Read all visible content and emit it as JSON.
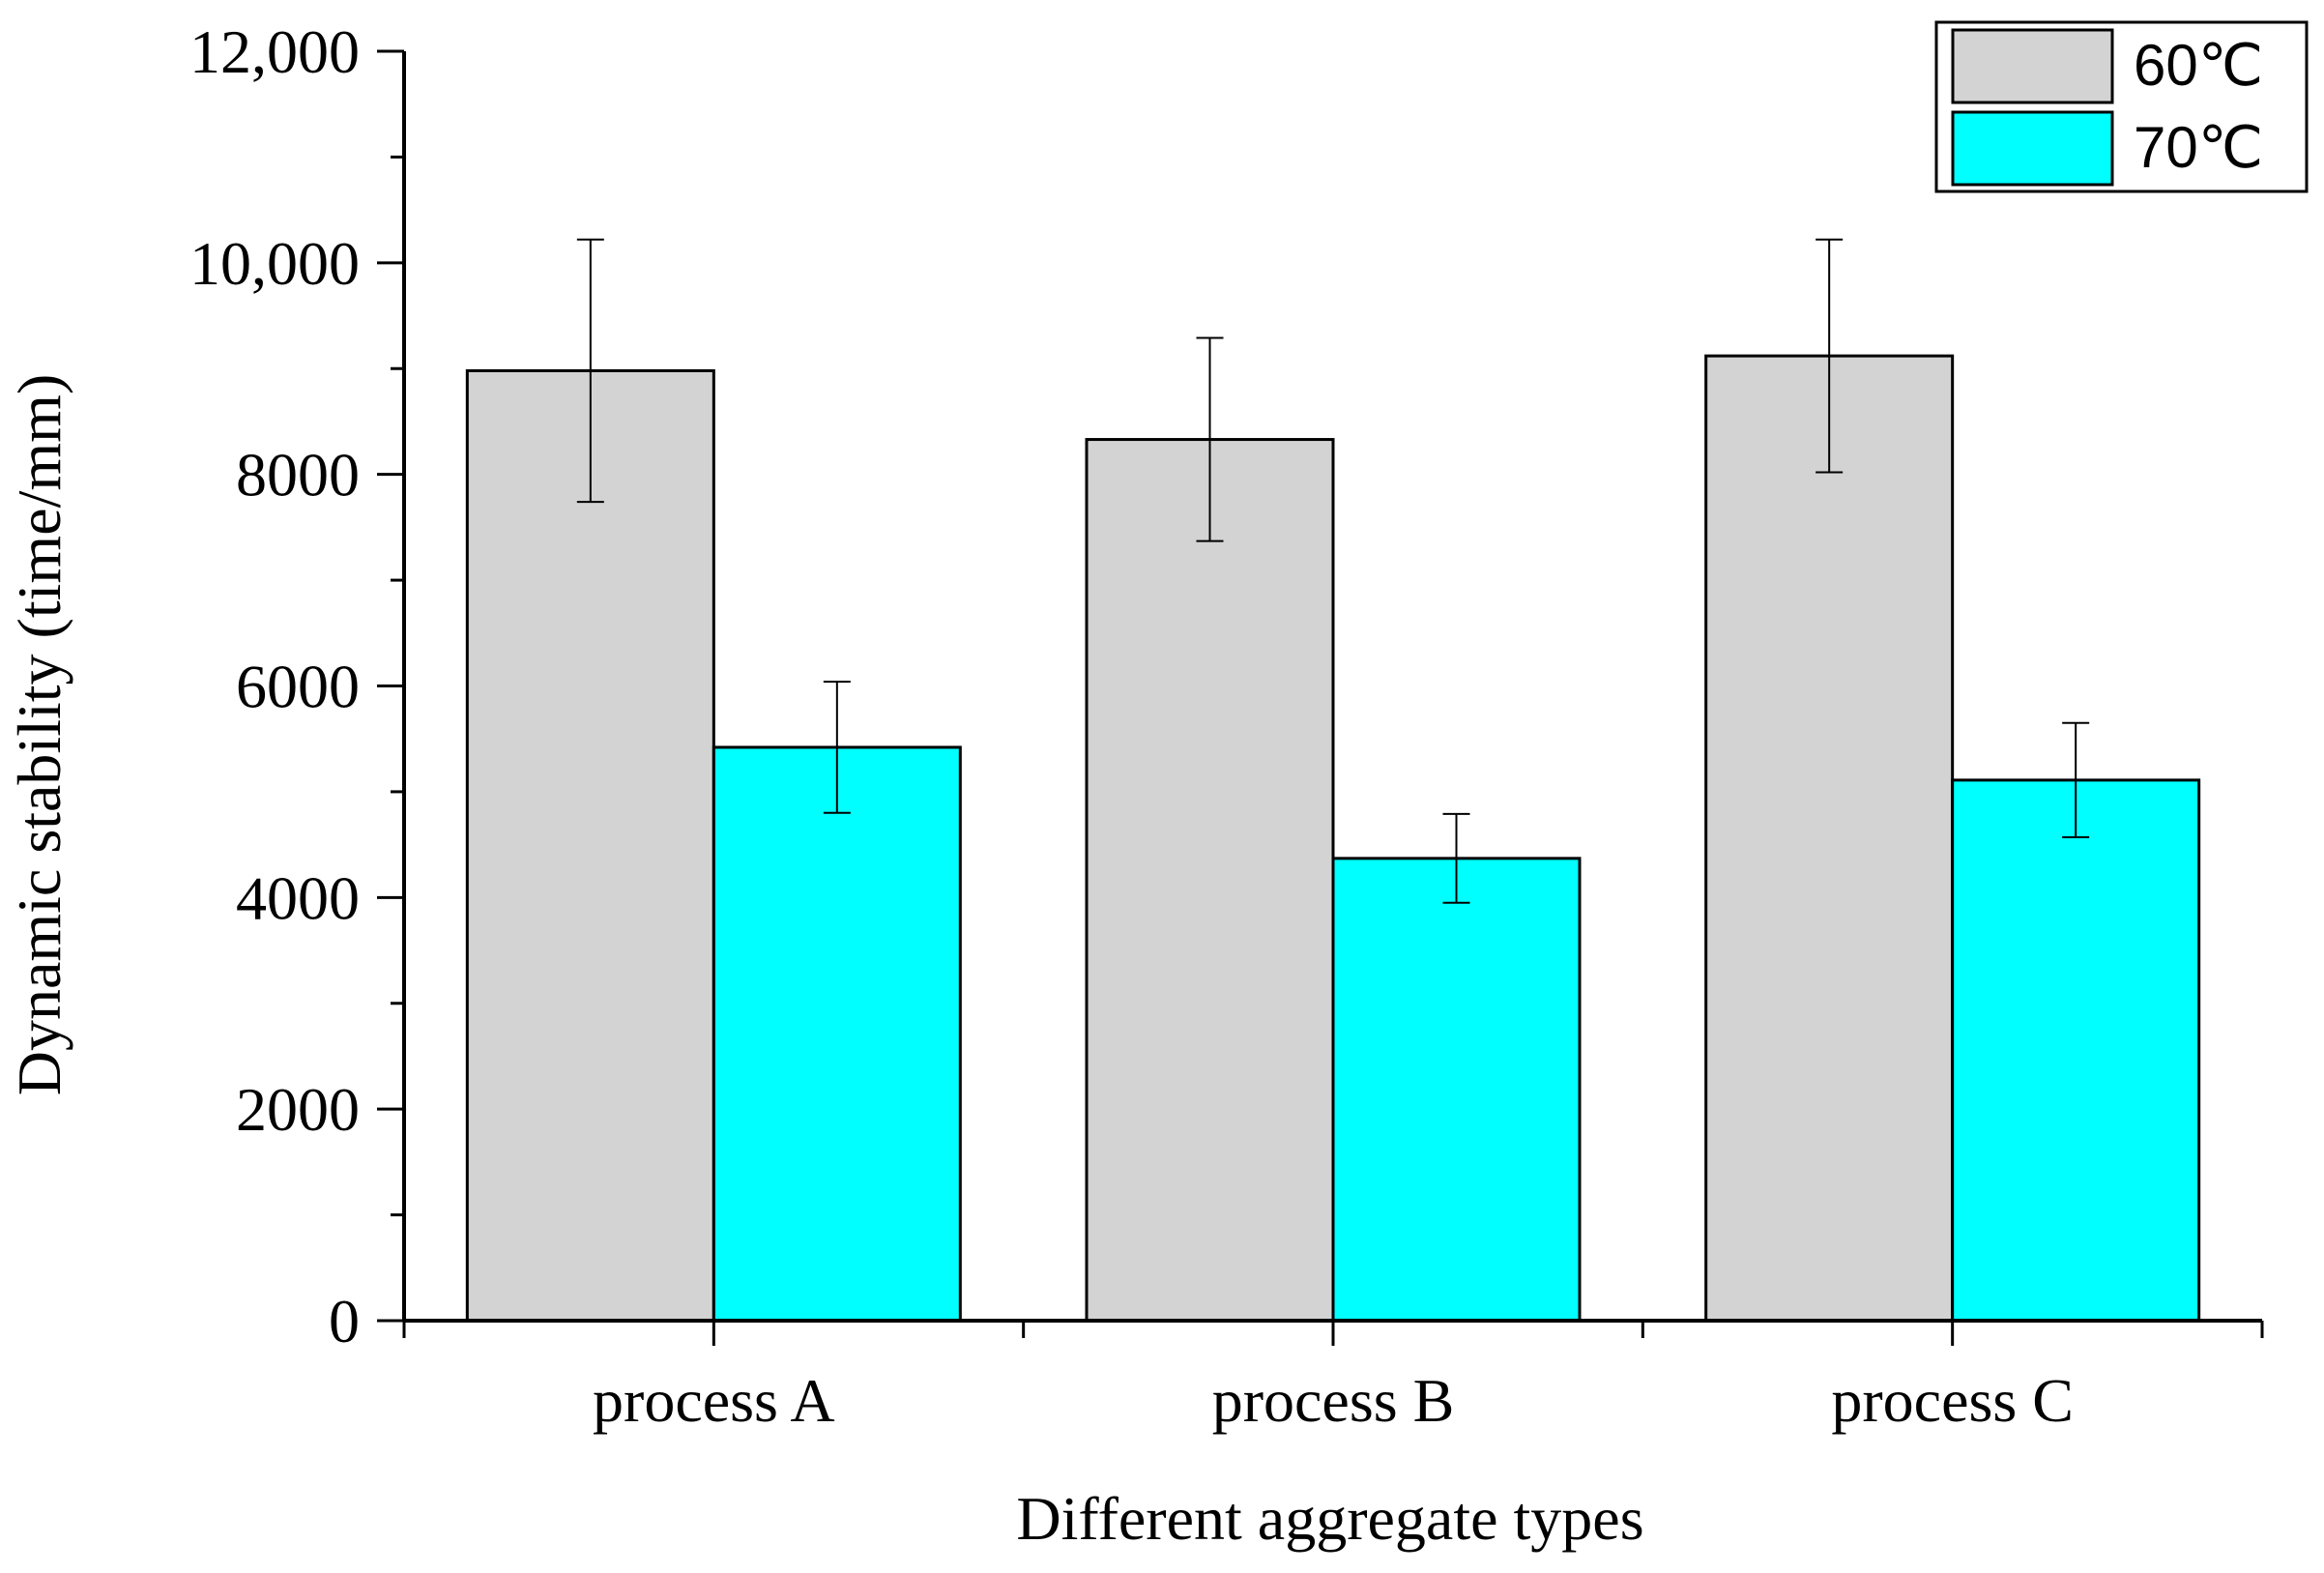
{
  "chart_data": {
    "type": "bar",
    "title": "",
    "xlabel": "Different aggregate types",
    "ylabel": "Dynamic stability (time/mm)",
    "categories": [
      "process A",
      "process B",
      "process C"
    ],
    "ylim": [
      0,
      12000
    ],
    "yticks": [
      {
        "value": 0,
        "label": "0"
      },
      {
        "value": 2000,
        "label": "2000"
      },
      {
        "value": 4000,
        "label": "4000"
      },
      {
        "value": 6000,
        "label": "6000"
      },
      {
        "value": 8000,
        "label": "8000"
      },
      {
        "value": 10000,
        "label": "10,000"
      },
      {
        "value": 12000,
        "label": "12,000"
      }
    ],
    "legend_position": "top-right",
    "series": [
      {
        "name": "60℃",
        "color": "#d3d3d3",
        "values": [
          8980,
          8330,
          9120
        ],
        "errors": [
          1240,
          960,
          1100
        ]
      },
      {
        "name": "70℃",
        "color": "#00ffff",
        "values": [
          5420,
          4370,
          5110
        ],
        "errors": [
          620,
          420,
          540
        ]
      }
    ]
  }
}
